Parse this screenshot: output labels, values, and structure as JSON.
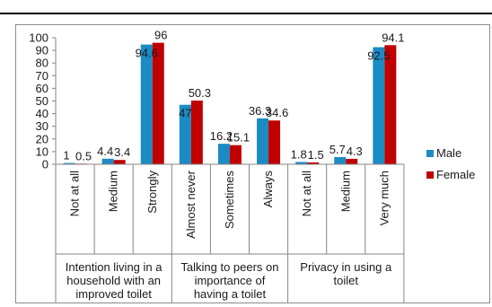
{
  "chart_data": {
    "type": "bar",
    "categories": [
      "Not at all",
      "Medium",
      "Strongly",
      "Almost never",
      "Sometimes",
      "Always",
      "Not at all",
      "Medium",
      "Very much"
    ],
    "groups": [
      {
        "label": "Intention living in a household with an improved toilet",
        "lines": [
          "Intention living in a",
          "household with an",
          "improved toilet"
        ]
      },
      {
        "label": "Talking to peers on importance of having a toilet",
        "lines": [
          "Talking to peers on",
          "importance of",
          "having a toilet"
        ]
      },
      {
        "label": "Privacy in using a toilet",
        "lines": [
          "Privacy in using a",
          "toilet"
        ]
      }
    ],
    "series": [
      {
        "name": "Male",
        "color": "#1b8bc4",
        "values": [
          1,
          4.4,
          94.6,
          47,
          16.2,
          36.3,
          1.8,
          5.7,
          92.5
        ]
      },
      {
        "name": "Female",
        "color": "#c00000",
        "values": [
          0.5,
          3.4,
          96,
          50.3,
          15.1,
          34.6,
          1.5,
          4.3,
          94.1
        ]
      }
    ],
    "value_labels": [
      [
        "1",
        "4.4",
        "94.6",
        "47",
        "16.2",
        "36.3",
        "1.8",
        "5.7",
        "92.5"
      ],
      [
        "0.5",
        "3.4",
        "96",
        "50.3",
        "15.1",
        "34.6",
        "1.5",
        "4.3",
        "94.1"
      ]
    ],
    "yticks": [
      "0",
      "10",
      "20",
      "30",
      "40",
      "50",
      "60",
      "70",
      "80",
      "90",
      "100"
    ],
    "ylim": [
      0,
      100
    ],
    "legend_position": "right",
    "grid": false
  }
}
